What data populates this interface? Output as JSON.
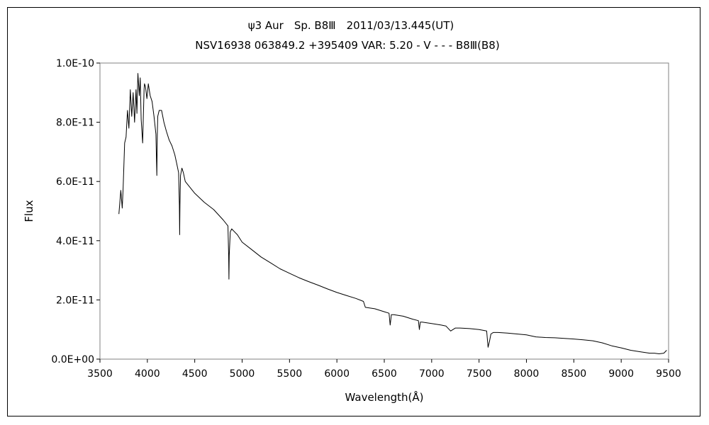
{
  "chart_data": {
    "type": "line",
    "title": "ψ3 Aur　Sp. B8Ⅲ　2011/03/13.445(UT)",
    "subtitle": "NSV16938 063849.2 +395409 VAR: 5.20 - V - - - B8Ⅲ(B8)",
    "xlabel": "Wavelength(Å)",
    "ylabel": "Flux",
    "xlim": [
      3500,
      9500
    ],
    "ylim": [
      0,
      1e-10
    ],
    "x_ticks": [
      3500,
      4000,
      4500,
      5000,
      5500,
      6000,
      6500,
      7000,
      7500,
      8000,
      8500,
      9000,
      9500
    ],
    "x_tick_labels": [
      "3500",
      "4000",
      "4500",
      "5000",
      "5500",
      "6000",
      "6500",
      "7000",
      "7500",
      "8000",
      "8500",
      "9000",
      "9500"
    ],
    "y_ticks": [
      0,
      2e-11,
      4e-11,
      6e-11,
      8e-11,
      1e-10
    ],
    "y_tick_labels": [
      "0.0E+00",
      "2.0E-11",
      "4.0E-11",
      "6.0E-11",
      "8.0E-11",
      "1.0E-10"
    ],
    "grid": false,
    "legend": "none",
    "series": [
      {
        "color": "#000000",
        "x": [
          3700,
          3720,
          3735,
          3745,
          3760,
          3775,
          3790,
          3805,
          3820,
          3835,
          3850,
          3865,
          3880,
          3890,
          3900,
          3915,
          3925,
          3935,
          3950,
          3965,
          3970,
          3980,
          3995,
          4010,
          4030,
          4050,
          4070,
          4090,
          4100,
          4105,
          4110,
          4125,
          4150,
          4175,
          4200,
          4230,
          4260,
          4290,
          4310,
          4330,
          4338,
          4341,
          4344,
          4350,
          4365,
          4380,
          4400,
          4450,
          4500,
          4600,
          4700,
          4800,
          4850,
          4858,
          4861,
          4864,
          4875,
          4890,
          4920,
          4950,
          5000,
          5100,
          5200,
          5300,
          5400,
          5500,
          5600,
          5700,
          5800,
          5900,
          6000,
          6100,
          6200,
          6280,
          6300,
          6400,
          6500,
          6550,
          6562,
          6575,
          6600,
          6700,
          6800,
          6860,
          6870,
          6880,
          6900,
          7000,
          7100,
          7150,
          7200,
          7250,
          7300,
          7400,
          7500,
          7580,
          7595,
          7610,
          7625,
          7650,
          7700,
          7800,
          7900,
          8000,
          8100,
          8200,
          8300,
          8400,
          8500,
          8600,
          8700,
          8800,
          8900,
          9000,
          9100,
          9200,
          9300,
          9350,
          9400,
          9450,
          9480
        ],
        "y": [
          4.9e-11,
          5.7e-11,
          5.1e-11,
          5.8e-11,
          7.3e-11,
          7.5e-11,
          8.4e-11,
          7.8e-11,
          9.1e-11,
          8.2e-11,
          9e-11,
          8e-11,
          9.1e-11,
          8.3e-11,
          9.65e-11,
          8.9e-11,
          9.5e-11,
          8.1e-11,
          7.3e-11,
          9.1e-11,
          9.3e-11,
          9.2e-11,
          8.8e-11,
          9.3e-11,
          8.9e-11,
          8.7e-11,
          8.2e-11,
          7.6e-11,
          6.2e-11,
          7.6e-11,
          8.2e-11,
          8.4e-11,
          8.4e-11,
          8e-11,
          7.7e-11,
          7.4e-11,
          7.2e-11,
          6.9e-11,
          6.6e-11,
          6.3e-11,
          5.2e-11,
          4.2e-11,
          5.2e-11,
          6.2e-11,
          6.45e-11,
          6.3e-11,
          6e-11,
          5.8e-11,
          5.6e-11,
          5.3e-11,
          5.05e-11,
          4.7e-11,
          4.5e-11,
          3.5e-11,
          2.7e-11,
          3.5e-11,
          4.3e-11,
          4.4e-11,
          4.3e-11,
          4.2e-11,
          3.95e-11,
          3.7e-11,
          3.45e-11,
          3.25e-11,
          3.05e-11,
          2.9e-11,
          2.75e-11,
          2.62e-11,
          2.5e-11,
          2.37e-11,
          2.25e-11,
          2.15e-11,
          2.05e-11,
          1.95e-11,
          1.75e-11,
          1.7e-11,
          1.6e-11,
          1.55e-11,
          1.15e-11,
          1.5e-11,
          1.5e-11,
          1.45e-11,
          1.35e-11,
          1.3e-11,
          1e-11,
          1.25e-11,
          1.25e-11,
          1.2e-11,
          1.15e-11,
          1.12e-11,
          9.5e-12,
          1.05e-11,
          1.05e-11,
          1.03e-11,
          1e-11,
          9.5e-12,
          4e-12,
          6e-12,
          8.5e-12,
          9e-12,
          9e-12,
          8.8e-12,
          8.5e-12,
          8.2e-12,
          7.5e-12,
          7.3e-12,
          7.2e-12,
          7e-12,
          6.8e-12,
          6.5e-12,
          6.2e-12,
          5.5e-12,
          4.5e-12,
          3.8e-12,
          3e-12,
          2.5e-12,
          2e-12,
          2e-12,
          1.8e-12,
          2e-12,
          3e-12
        ]
      }
    ]
  }
}
